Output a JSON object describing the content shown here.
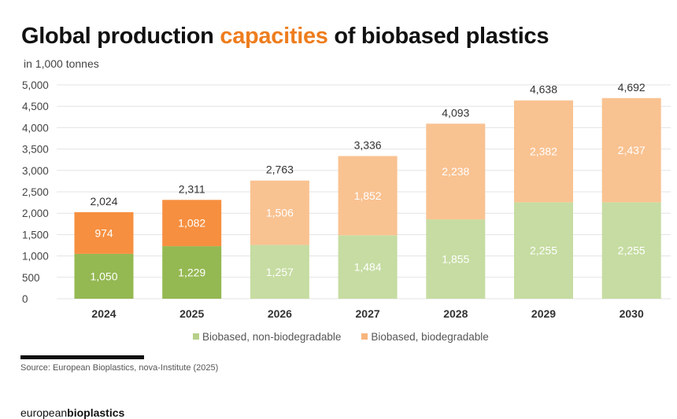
{
  "chart_data": {
    "type": "bar",
    "stacked": true,
    "title_parts": [
      "Global production ",
      "capacities",
      " of biobased plastics"
    ],
    "subtitle": "in 1,000 tonnes",
    "categories": [
      "2024",
      "2025",
      "2026",
      "2027",
      "2028",
      "2029",
      "2030"
    ],
    "series": [
      {
        "name": "Biobased, non-biodegradable",
        "values": [
          1050,
          1229,
          1257,
          1484,
          1855,
          2255,
          2255
        ],
        "labels": [
          "1,050",
          "1,229",
          "1,257",
          "1,484",
          "1,855",
          "2,255",
          "2,255"
        ]
      },
      {
        "name": "Biobased, biodegradable",
        "values": [
          974,
          1082,
          1506,
          1852,
          2238,
          2382,
          2437
        ],
        "labels": [
          "974",
          "1,082",
          "1,506",
          "1,852",
          "2,238",
          "2,382",
          "2,437"
        ]
      }
    ],
    "totals": [
      "2,024",
      "2,311",
      "2,763",
      "3,336",
      "4,093",
      "4,638",
      "4,692"
    ],
    "total_values": [
      2024,
      2311,
      2763,
      3336,
      4093,
      4638,
      4692
    ],
    "ylim": [
      0,
      5000
    ],
    "yticks": [
      0,
      500,
      1000,
      1500,
      2000,
      2500,
      3000,
      3500,
      4000,
      4500,
      5000
    ],
    "ytick_labels": [
      "0",
      "500",
      "1,000",
      "1,500",
      "2,000",
      "2,500",
      "3,000",
      "3,500",
      "4,000",
      "4,500",
      "5,000"
    ],
    "grid": true,
    "legend_position": "bottom",
    "colors": {
      "actual_green": "#94b852",
      "actual_orange": "#f68f3f",
      "forecast_green": "#c6dca2",
      "forecast_orange": "#f9c291",
      "highlight": "#ee7d1e"
    },
    "actual_count": 2
  },
  "source": "Source: European Bioplastics, nova-Institute (2025)",
  "logo": {
    "light": "european",
    "bold": "bioplastics"
  }
}
